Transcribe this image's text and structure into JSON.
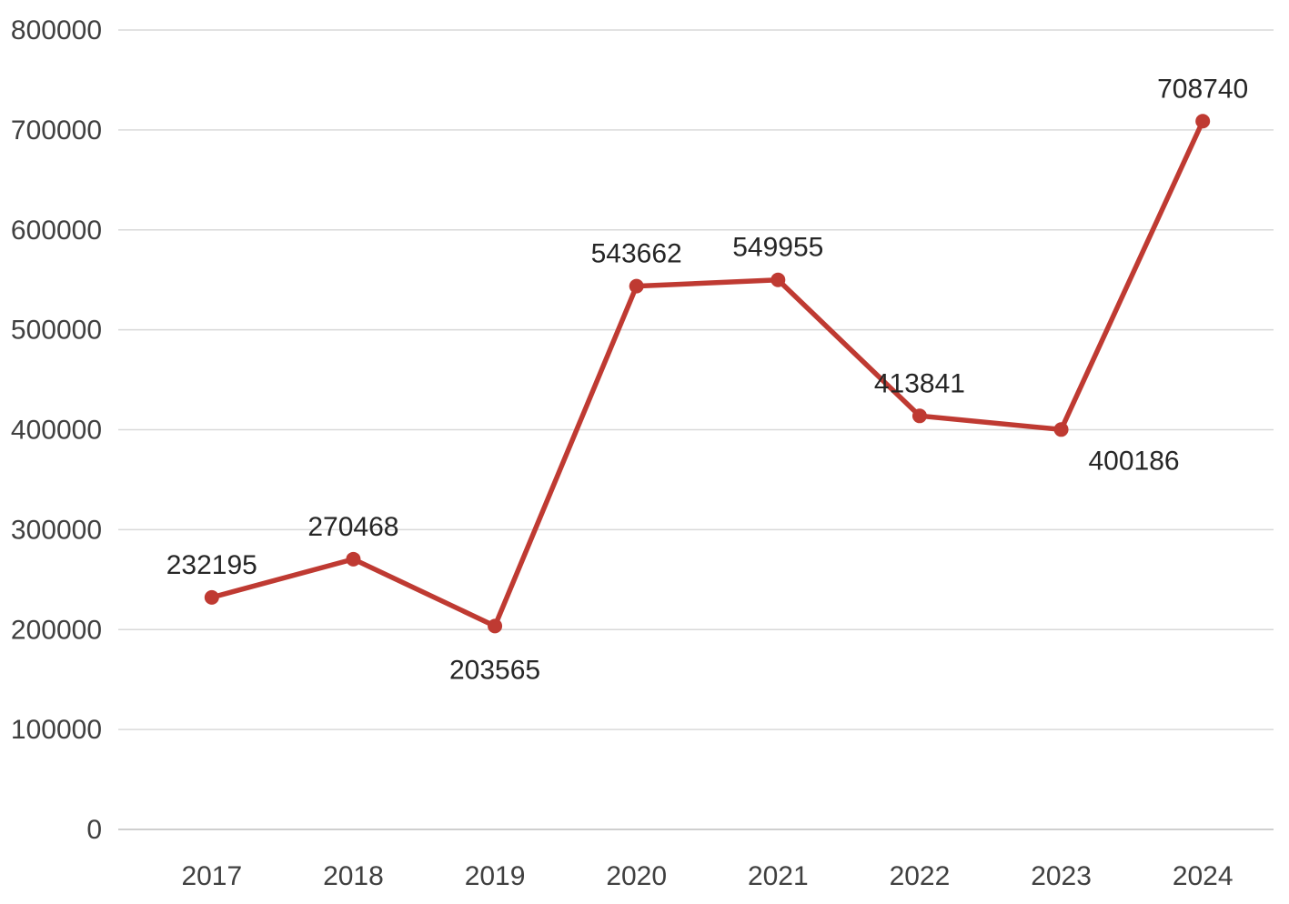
{
  "chart_data": {
    "type": "line",
    "title": "",
    "xlabel": "",
    "ylabel": "",
    "categories": [
      "2017",
      "2018",
      "2019",
      "2020",
      "2021",
      "2022",
      "2023",
      "2024"
    ],
    "series": [
      {
        "name": "values",
        "values": [
          232195,
          270468,
          203565,
          543662,
          549955,
          413841,
          400186,
          708740
        ]
      }
    ],
    "data_labels": [
      "232195",
      "270468",
      "203565",
      "543662",
      "549955",
      "413841",
      "400186",
      "708740"
    ],
    "label_positions": [
      "above",
      "above",
      "below",
      "above",
      "above",
      "above",
      "below-right",
      "above"
    ],
    "ylim": [
      0,
      800000
    ],
    "ytick_step": 100000,
    "yticks": [
      0,
      100000,
      200000,
      300000,
      400000,
      500000,
      600000,
      700000,
      800000
    ],
    "ytick_labels": [
      "0",
      "100000",
      "200000",
      "300000",
      "400000",
      "500000",
      "600000",
      "700000",
      "800000"
    ],
    "grid": true,
    "legend_position": "none",
    "colors": {
      "line": "#bf3a32",
      "marker": "#bf3a32",
      "gridline": "#d9d9d9",
      "axis_line": "#bfbfbf",
      "axis_text": "#404040",
      "label_text": "#262626",
      "background": "#ffffff"
    }
  }
}
